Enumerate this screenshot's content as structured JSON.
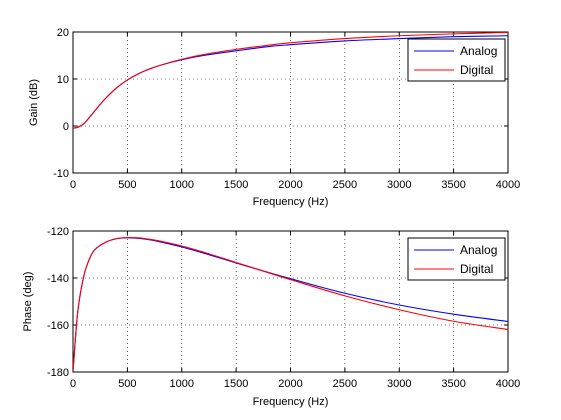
{
  "chart_data": [
    {
      "type": "line",
      "xlabel": "Frequency (Hz)",
      "ylabel": "Gain (dB)",
      "xlim": [
        0,
        4000
      ],
      "ylim": [
        -10,
        20
      ],
      "xticks": [
        "0",
        "500",
        "1000",
        "1500",
        "2000",
        "2500",
        "3000",
        "3500",
        "4000"
      ],
      "yticks": [
        "-10",
        "0",
        "10",
        "20"
      ],
      "grid": true,
      "legend_position": "top-right",
      "x": [
        0,
        50,
        100,
        150,
        200,
        250,
        300,
        400,
        500,
        600,
        700,
        800,
        1000,
        1200,
        1500,
        1800,
        2000,
        2500,
        3000,
        3500,
        4000
      ],
      "series": [
        {
          "name": "Analog",
          "color": "#0000ff",
          "values": [
            -0.5,
            -0.2,
            0.5,
            1.8,
            3.2,
            4.6,
            5.9,
            8.1,
            9.8,
            11.1,
            12.1,
            12.9,
            14.1,
            15.0,
            16.0,
            16.9,
            17.3,
            18.1,
            18.6,
            19.0,
            19.2
          ]
        },
        {
          "name": "Digital",
          "color": "#ff0000",
          "values": [
            -0.5,
            -0.2,
            0.5,
            1.8,
            3.2,
            4.6,
            5.9,
            8.1,
            9.8,
            11.1,
            12.1,
            12.9,
            14.2,
            15.2,
            16.3,
            17.2,
            17.7,
            18.6,
            19.2,
            19.6,
            19.9
          ]
        }
      ]
    },
    {
      "type": "line",
      "xlabel": "Frequency (Hz)",
      "ylabel": "Phase (deg)",
      "xlim": [
        0,
        4000
      ],
      "ylim": [
        -180,
        -120
      ],
      "xticks": [
        "0",
        "500",
        "1000",
        "1500",
        "2000",
        "2500",
        "3000",
        "3500",
        "4000"
      ],
      "yticks": [
        "-180",
        "-160",
        "-140",
        "-120"
      ],
      "grid": true,
      "legend_position": "top-right",
      "x": [
        0,
        25,
        50,
        100,
        150,
        200,
        300,
        400,
        500,
        600,
        700,
        800,
        1000,
        1200,
        1500,
        1800,
        2000,
        2500,
        3000,
        3500,
        4000
      ],
      "series": [
        {
          "name": "Analog",
          "color": "#0000ff",
          "values": [
            -180,
            -164,
            -152,
            -139,
            -132,
            -128,
            -124.8,
            -123.3,
            -122.9,
            -123.1,
            -123.7,
            -124.6,
            -126.8,
            -129.4,
            -133.6,
            -137.7,
            -140.3,
            -146.5,
            -151.5,
            -155.4,
            -158.5
          ]
        },
        {
          "name": "Digital",
          "color": "#ff0000",
          "values": [
            -180,
            -164,
            -152,
            -139,
            -132,
            -128,
            -124.8,
            -123.2,
            -122.8,
            -122.9,
            -123.5,
            -124.3,
            -126.4,
            -129.0,
            -133.4,
            -137.8,
            -140.7,
            -147.6,
            -153.5,
            -158.4,
            -161.9
          ]
        }
      ]
    }
  ]
}
